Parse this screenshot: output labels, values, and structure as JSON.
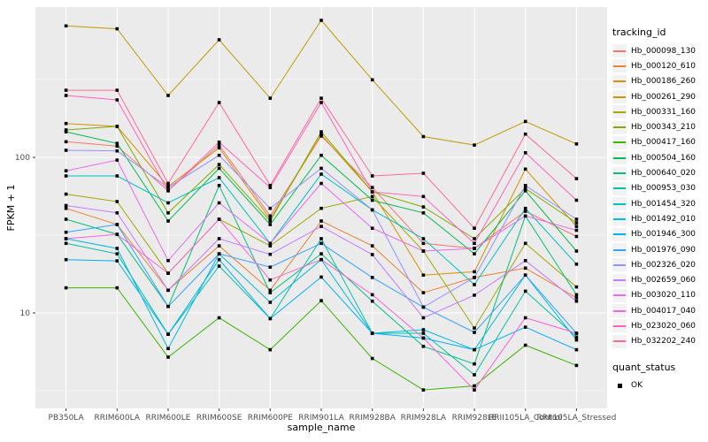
{
  "figure": {
    "panel_bg": "#EBEBEB",
    "grid_color": "#FFFFFF",
    "tick_color": "#333333",
    "tick_label_color": "#4D4D4D",
    "point_color": "#000000"
  },
  "legend": {
    "tracking_title": "tracking_id",
    "quant_title": "quant_status",
    "quant_value": "OK",
    "key_fill": "#F2F2F2"
  },
  "chart_data": {
    "type": "line",
    "title": "",
    "xlabel": "sample_name",
    "ylabel": "FPKM + 1",
    "y_scale": "log10",
    "ylim": [
      2.4,
      950
    ],
    "grid": true,
    "legend_position": "right",
    "yticks": [
      {
        "label": "100",
        "value": 100
      },
      {
        "label": "10",
        "value": 10
      }
    ],
    "categories": [
      "PB350LA",
      "RRIM600LA",
      "RRIM600LE",
      "RRIM600SE",
      "RRIM600PE",
      "RRIM901LA",
      "RRIM928BA",
      "RRIM928LA",
      "RRIM928LE",
      "RRII105LA_Control",
      "RRII105LA_Stressed"
    ],
    "point_shape": "square",
    "series": [
      {
        "name": "Hb_000098_130",
        "color": "#F8766D",
        "values": [
          126,
          118,
          61,
          120,
          42,
          137,
          64,
          28,
          26,
          45,
          31
        ]
      },
      {
        "name": "Hb_000120_610",
        "color": "#EA8331",
        "values": [
          47,
          37,
          14,
          27,
          14,
          39,
          27,
          13.5,
          16.9,
          19.4,
          12.5
        ]
      },
      {
        "name": "Hb_000186_260",
        "color": "#D89000",
        "values": [
          165,
          158,
          65,
          115,
          40,
          140,
          60,
          17.5,
          18.4,
          84,
          36
        ]
      },
      {
        "name": "Hb_000261_290",
        "color": "#C09B00",
        "values": [
          700,
          670,
          250,
          570,
          240,
          760,
          315,
          136,
          120,
          170,
          122
        ]
      },
      {
        "name": "Hb_000331_160",
        "color": "#A3A500",
        "values": [
          58,
          52,
          18,
          40,
          27,
          47,
          56,
          25,
          8,
          28,
          14.7
        ]
      },
      {
        "name": "Hb_000343_210",
        "color": "#7CAE00",
        "values": [
          150,
          158,
          44,
          90,
          39,
          146,
          60,
          48,
          30,
          63,
          38
        ]
      },
      {
        "name": "Hb_000417_160",
        "color": "#39B600",
        "values": [
          14.5,
          14.5,
          5.2,
          9.3,
          5.8,
          12,
          5.1,
          3.2,
          3.4,
          6.2,
          4.6
        ]
      },
      {
        "name": "Hb_000504_160",
        "color": "#00BB4E",
        "values": [
          146,
          123,
          39,
          85,
          37,
          103,
          53,
          44,
          24,
          61,
          25
        ]
      },
      {
        "name": "Hb_000640_020",
        "color": "#00BF7D",
        "values": [
          40,
          32,
          11,
          66,
          13.5,
          24,
          11.9,
          6.1,
          4.7,
          42,
          13.1
        ]
      },
      {
        "name": "Hb_000953_030",
        "color": "#00C1A3",
        "values": [
          28,
          24,
          7.3,
          20,
          9.2,
          30,
          7.4,
          7.4,
          4.0,
          13.8,
          7.0
        ]
      },
      {
        "name": "Hb_001454_320",
        "color": "#00BFC4",
        "values": [
          76,
          76,
          51,
          74,
          28,
          78,
          46,
          30,
          15.2,
          47,
          20.6
        ]
      },
      {
        "name": "Hb_001492_010",
        "color": "#00BAE0",
        "values": [
          30,
          26,
          5.9,
          24,
          11.7,
          22,
          7.4,
          7.8,
          5.8,
          17.5,
          6.7
        ]
      },
      {
        "name": "Hb_001946_300",
        "color": "#00B0F6",
        "values": [
          22,
          21.6,
          7.3,
          22,
          9.2,
          17,
          7.4,
          6.9,
          5.8,
          8.1,
          5.8
        ]
      },
      {
        "name": "Hb_001976_090",
        "color": "#35A2FF",
        "values": [
          33,
          37,
          11,
          24,
          19.7,
          28,
          16.9,
          10.9,
          7.5,
          17.5,
          7.4
        ]
      },
      {
        "name": "Hb_002326_020",
        "color": "#9590FF",
        "values": [
          111,
          110,
          64,
          103,
          47,
          85,
          46,
          10.9,
          16.9,
          66,
          40
        ]
      },
      {
        "name": "Hb_002659_060",
        "color": "#C77CFF",
        "values": [
          49,
          44,
          14,
          30,
          23.8,
          36,
          23.7,
          9.3,
          13,
          21.7,
          11.9
        ]
      },
      {
        "name": "Hb_003020_110",
        "color": "#E76BF3",
        "values": [
          82,
          96,
          21.7,
          51,
          28,
          68,
          35,
          25,
          26,
          42,
          34
        ]
      },
      {
        "name": "Hb_004017_040",
        "color": "#FA62DB",
        "values": [
          30,
          32,
          18,
          40,
          16.3,
          22,
          13.1,
          6.9,
          3.2,
          9.3,
          7.4
        ]
      },
      {
        "name": "Hb_023020_060",
        "color": "#FF62BC",
        "values": [
          250,
          234,
          61,
          125,
          64,
          225,
          60,
          56,
          28,
          107,
          53
        ]
      },
      {
        "name": "Hb_032202_240",
        "color": "#FF6A98",
        "values": [
          270,
          270,
          68,
          225,
          66,
          240,
          76,
          79,
          35,
          141,
          73
        ]
      }
    ]
  }
}
